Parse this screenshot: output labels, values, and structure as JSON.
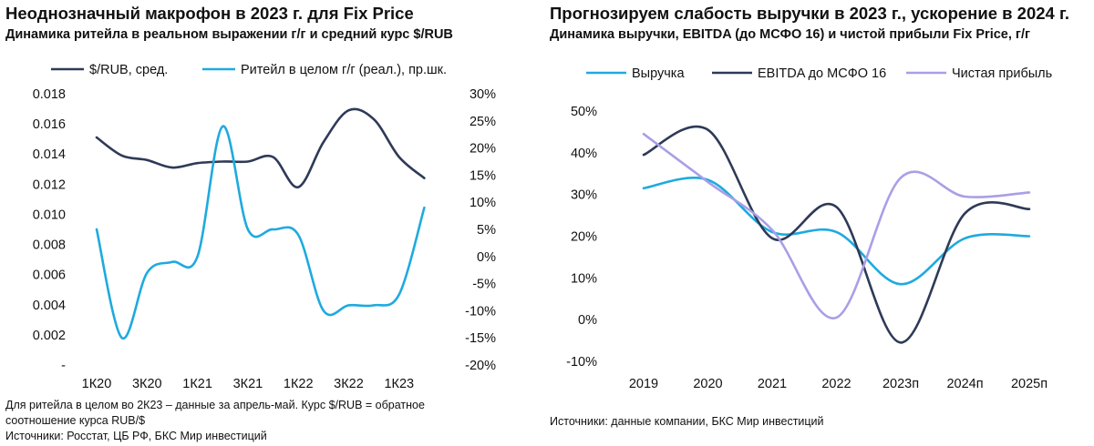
{
  "left": {
    "title": "Неоднозначный макрофон в 2023 г. для Fix Price",
    "subtitle": "Динамика ритейла в реальном выражении г/г и средний курс $/RUB",
    "note_lines": [
      "Для ритейла в целом во 2К23 – данные за апрель-май. Курс $/RUB = обратное",
      "соотношение курса RUB/$",
      "Источники: Росстат, ЦБ РФ, БКС Мир инвестиций"
    ]
  },
  "right": {
    "title": "Прогнозируем слабость выручки в 2023 г., ускорение в 2024 г.",
    "subtitle": "Динамика выручки, EBITDA (до МСФО 16) и чистой прибыли Fix Price, г/г",
    "note": "Источники: данные компании, БКС Мир инвестиций"
  },
  "chart_data": [
    {
      "type": "line",
      "x_ticks": [
        "1К20",
        "3К20",
        "1К21",
        "3К21",
        "1К22",
        "3К22",
        "1К23"
      ],
      "y_left_ticks": [
        "0.018",
        "0.016",
        "0.014",
        "0.012",
        "0.010",
        "0.008",
        "0.006",
        "0.004",
        "0.002",
        "-"
      ],
      "y_right_ticks": [
        "30%",
        "25%",
        "20%",
        "15%",
        "10%",
        "5%",
        "0%",
        "-5%",
        "-10%",
        "-15%",
        "-20%"
      ],
      "ylim_left": [
        0,
        0.018
      ],
      "ylim_right": [
        -20,
        30
      ],
      "legend_position": "top",
      "series": [
        {
          "name": "$/RUB, сред.",
          "axis": "left",
          "color": "#2e3a57",
          "x": [
            0,
            0.5,
            1,
            1.5,
            2,
            2.5,
            3,
            3.5,
            4,
            4.5,
            5,
            5.5,
            6,
            6.5
          ],
          "values": [
            0.0151,
            0.0139,
            0.0136,
            0.0131,
            0.0134,
            0.0135,
            0.0135,
            0.0138,
            0.0118,
            0.0148,
            0.0169,
            0.0163,
            0.0138,
            0.0124
          ]
        },
        {
          "name": "Ритейл в целом г/г (реал.), пр.шк.",
          "axis": "right",
          "color": "#1eaadf",
          "x": [
            0,
            0.5,
            1,
            1.5,
            2,
            2.5,
            3,
            3.5,
            4,
            4.5,
            5,
            5.5,
            6,
            6.5
          ],
          "values": [
            5,
            -15,
            -3,
            -1,
            0,
            24,
            5,
            5,
            4,
            -10,
            -9,
            -9,
            -7,
            9
          ]
        }
      ]
    },
    {
      "type": "line",
      "categories": [
        "2019",
        "2020",
        "2021",
        "2022",
        "2023п",
        "2024п",
        "2025п"
      ],
      "y_ticks": [
        "50%",
        "40%",
        "30%",
        "20%",
        "10%",
        "0%",
        "-10%"
      ],
      "ylim": [
        -10,
        50
      ],
      "legend_position": "top",
      "series": [
        {
          "name": "Выручка",
          "color": "#1eaadf",
          "values": [
            31.5,
            33.5,
            21,
            21,
            8.5,
            19.5,
            20
          ]
        },
        {
          "name": "EBITDA до МСФО 16",
          "color": "#2e3a57",
          "values": [
            39.5,
            45.5,
            19.5,
            27,
            -5.5,
            25.5,
            26.5
          ]
        },
        {
          "name": "Чистая прибыль",
          "color": "#a99fe6",
          "values": [
            44.5,
            33,
            21.5,
            0.5,
            34,
            29.5,
            30.5
          ]
        }
      ]
    }
  ]
}
